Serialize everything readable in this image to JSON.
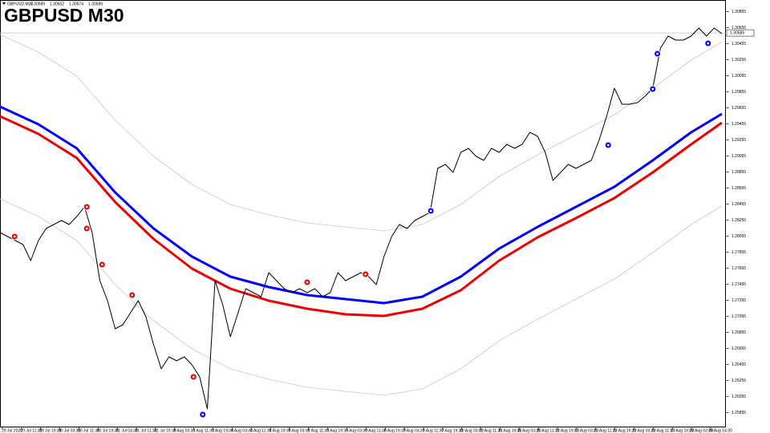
{
  "chart_data": {
    "type": "line",
    "title": "GBPUSD M30",
    "header": "GBPUSD,M30",
    "header_values": [
      1.30589,
      1.30602,
      1.30574,
      1.30589
    ],
    "bid": 1.30589,
    "xlim": [
      0,
      94
    ],
    "ylim": [
      1.2568,
      1.31
    ],
    "yticks": [
      1.25855,
      1.26055,
      1.26255,
      1.26455,
      1.26655,
      1.26855,
      1.27055,
      1.27255,
      1.27455,
      1.27655,
      1.27855,
      1.28055,
      1.28255,
      1.28455,
      1.28655,
      1.28855,
      1.29055,
      1.29255,
      1.29455,
      1.29655,
      1.29855,
      1.30055,
      1.30255,
      1.30455,
      1.30655,
      1.30855
    ],
    "xlabels": [
      "29 Jul 2020",
      "29 Jul 11:30",
      "29 Jul 19:30",
      "30 Jul 03:30",
      "30 Jul 11:30",
      "30 Jul 19:30",
      "31 Jul 03:30",
      "31 Jul 11:30",
      "31 Jul 19:30",
      "3 Aug 03:30",
      "3 Aug 11:30",
      "3 Aug 19:30",
      "4 Aug 03:30",
      "4 Aug 11:30",
      "4 Aug 19:30",
      "5 Aug 03:30",
      "5 Aug 11:30",
      "5 Aug 19:30",
      "6 Aug 03:30",
      "6 Aug 11:30",
      "6 Aug 19:30",
      "7 Aug 03:30",
      "7 Aug 11:30",
      "7 Aug 19:30",
      "10 Aug 03:30",
      "10 Aug 11:30",
      "10 Aug 19:30",
      "11 Aug 03:30",
      "11 Aug 11:30",
      "11 Aug 19:30",
      "12 Aug 03:30",
      "12 Aug 11:30",
      "12 Aug 19:30",
      "13 Aug 03:30",
      "13 Aug 11:30",
      "13 Aug 19:30",
      "14 Aug 03:30",
      "14 Aug 14:30"
    ],
    "series": [
      {
        "color": "#c8c8c8",
        "width": 0.8,
        "x": [
          0,
          5,
          10,
          15,
          20,
          25,
          30,
          35,
          40,
          45,
          50,
          55,
          60,
          65,
          70,
          75,
          80,
          85,
          90,
          94
        ],
        "values": [
          1.3057,
          1.3035,
          1.3005,
          1.295,
          1.2905,
          1.287,
          1.2845,
          1.2832,
          1.2822,
          1.2817,
          1.2812,
          1.282,
          1.2845,
          1.288,
          1.2907,
          1.2932,
          1.2957,
          1.299,
          1.3025,
          1.3048
        ]
      },
      {
        "color": "#c8c8c8",
        "width": 0.8,
        "x": [
          0,
          5,
          10,
          15,
          20,
          25,
          30,
          35,
          40,
          45,
          50,
          55,
          60,
          65,
          70,
          75,
          80,
          85,
          90,
          94
        ],
        "values": [
          1.2852,
          1.283,
          1.28,
          1.2745,
          1.27,
          1.2665,
          1.264,
          1.2627,
          1.2617,
          1.2612,
          1.2607,
          1.2615,
          1.264,
          1.2675,
          1.2702,
          1.2727,
          1.2752,
          1.2785,
          1.282,
          1.2843
        ]
      },
      {
        "color": "#0000ff",
        "width": 3,
        "x": [
          0,
          5,
          10,
          15,
          20,
          25,
          30,
          35,
          40,
          45,
          50,
          55,
          60,
          65,
          70,
          75,
          80,
          85,
          90,
          94
        ],
        "values": [
          1.2967,
          1.2945,
          1.2915,
          1.286,
          1.2815,
          1.278,
          1.2755,
          1.2742,
          1.2732,
          1.2727,
          1.2722,
          1.273,
          1.2755,
          1.279,
          1.2817,
          1.2842,
          1.2867,
          1.29,
          1.2935,
          1.2958
        ]
      },
      {
        "color": "#ee0000",
        "width": 3,
        "x": [
          0,
          5,
          10,
          15,
          20,
          25,
          30,
          35,
          40,
          45,
          50,
          55,
          60,
          65,
          70,
          75,
          80,
          85,
          90,
          94
        ],
        "values": [
          1.2955,
          1.2933,
          1.2903,
          1.2848,
          1.2802,
          1.2765,
          1.274,
          1.2725,
          1.2715,
          1.2708,
          1.2706,
          1.2715,
          1.2738,
          1.2775,
          1.2804,
          1.2828,
          1.2853,
          1.2885,
          1.292,
          1.2947
        ]
      },
      {
        "color": "#000000",
        "width": 1,
        "values": [
          1.281,
          1.2805,
          1.28,
          1.2795,
          1.2775,
          1.28,
          1.2815,
          1.282,
          1.2825,
          1.282,
          1.283,
          1.2842,
          1.281,
          1.275,
          1.2725,
          1.269,
          1.2695,
          1.271,
          1.2725,
          1.2705,
          1.267,
          1.264,
          1.2655,
          1.265,
          1.2655,
          1.2645,
          1.263,
          1.259,
          1.275,
          1.272,
          1.268,
          1.271,
          1.274,
          1.2735,
          1.273,
          1.276,
          1.275,
          1.274,
          1.2735,
          1.274,
          1.2735,
          1.274,
          1.273,
          1.2735,
          1.276,
          1.275,
          1.2755,
          1.276,
          1.2755,
          1.2745,
          1.278,
          1.2805,
          1.282,
          1.2815,
          1.2825,
          1.283,
          1.2835,
          1.289,
          1.2895,
          1.2885,
          1.291,
          1.2915,
          1.2905,
          1.29,
          1.2915,
          1.291,
          1.292,
          1.2915,
          1.292,
          1.2935,
          1.293,
          1.291,
          1.2875,
          1.2885,
          1.2895,
          1.289,
          1.2895,
          1.29,
          1.2925,
          1.2955,
          1.299,
          1.297,
          1.297,
          1.2972,
          1.298,
          1.299,
          1.304,
          1.3055,
          1.305,
          1.305,
          1.3055,
          1.3065,
          1.3055,
          1.3065,
          1.3058
        ]
      }
    ],
    "sell": {
      "color": "#ee0000",
      "x": [
        1.9,
        11.3,
        11.3,
        13.3,
        17.2,
        25.2,
        40,
        47.6
      ],
      "values": [
        1.2805,
        1.2842,
        1.2815,
        1.277,
        1.2732,
        1.263,
        1.2748,
        1.2758
      ]
    },
    "buy": {
      "color": "#0000ff",
      "x": [
        26.4,
        56.1,
        79.2,
        85,
        85.6,
        92.2
      ],
      "values": [
        1.2583,
        1.2837,
        1.2919,
        1.2989,
        1.3033,
        1.3046
      ]
    }
  }
}
